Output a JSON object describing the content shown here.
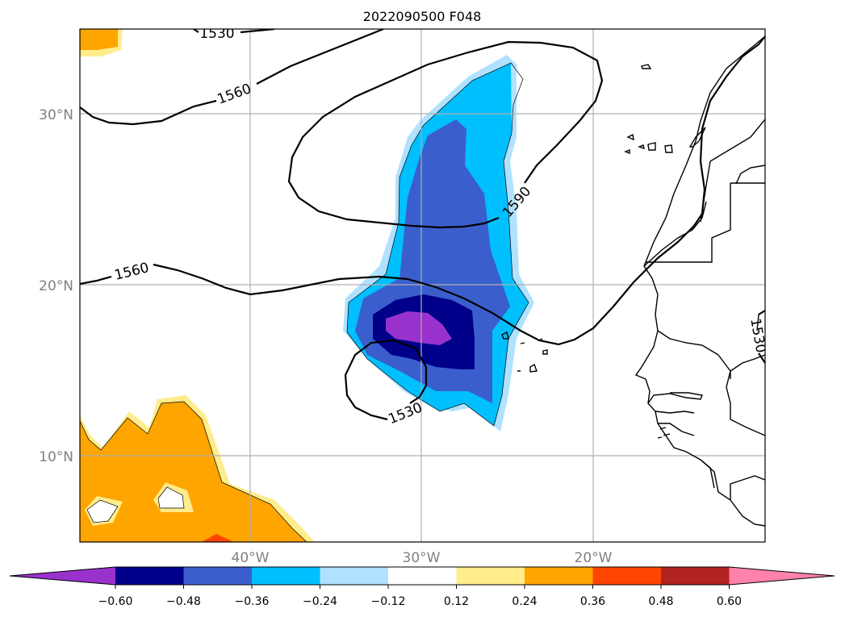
{
  "map": {
    "title": "2022090500 F048",
    "lat_labels": [
      "30°N",
      "20°N",
      "10°N"
    ],
    "lon_labels": [
      "40°W",
      "30°W",
      "20°W"
    ],
    "contour_labels": [
      "1530",
      "1560",
      "1560",
      "1590",
      "1530",
      "1530"
    ],
    "contour_color": "#000000"
  },
  "colorbar": {
    "ticks": [
      "−0.60",
      "−0.48",
      "−0.36",
      "−0.24",
      "−0.12",
      "0.12",
      "0.24",
      "0.36",
      "0.48",
      "0.60"
    ],
    "colors": [
      "#9932CC",
      "#00008B",
      "#3A5FCD",
      "#00BFFF",
      "#B0E2FF",
      "#FFFFFF",
      "#FFEC8B",
      "#FFA500",
      "#FF4500",
      "#B22222",
      "#FF82AB"
    ]
  }
}
